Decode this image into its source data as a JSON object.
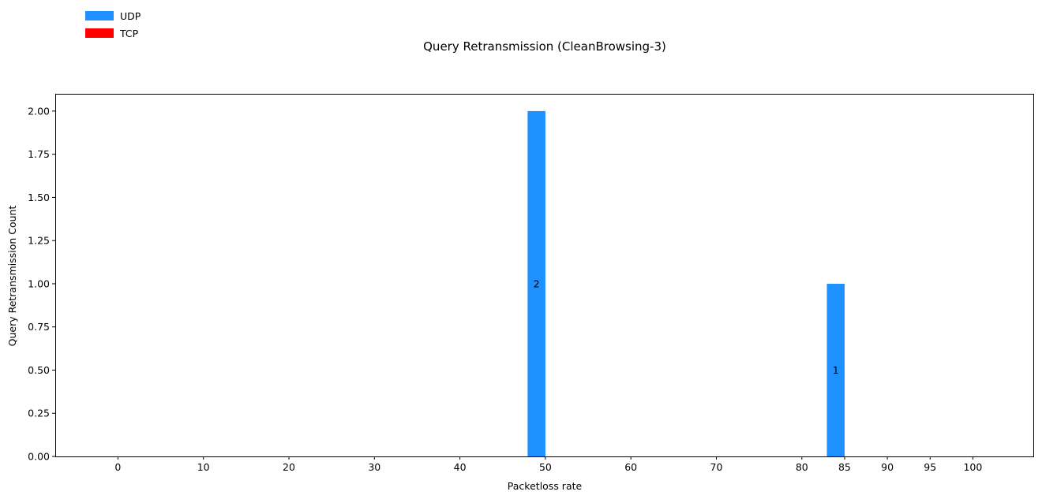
{
  "chart_data": {
    "type": "bar",
    "title": "Query Retransmission (CleanBrowsing-3)",
    "xlabel": "Packetloss rate",
    "ylabel": "Query Retransmission Count",
    "categories": [
      "0",
      "10",
      "20",
      "30",
      "40",
      "50",
      "60",
      "70",
      "80",
      "85",
      "90",
      "95",
      "100"
    ],
    "x_ticks": [
      0,
      10,
      20,
      30,
      40,
      50,
      60,
      70,
      80,
      85,
      90,
      95,
      100
    ],
    "yticks": [
      "0.00",
      "0.25",
      "0.50",
      "0.75",
      "1.00",
      "1.25",
      "1.50",
      "1.75",
      "2.00"
    ],
    "ylim": [
      0,
      2.1
    ],
    "grid": false,
    "legend_position": "top-left, outside plot",
    "series": [
      {
        "name": "UDP",
        "color": "#1e90ff",
        "values": [
          0,
          0,
          0,
          0,
          0,
          2,
          0,
          0,
          0,
          1,
          0,
          0,
          0
        ],
        "labels": [
          "",
          "",
          "",
          "",
          "",
          "2",
          "",
          "",
          "",
          "1",
          "",
          "",
          ""
        ]
      },
      {
        "name": "TCP",
        "color": "#ff0000",
        "values": [
          0,
          0,
          0,
          0,
          0,
          0,
          0,
          0,
          0,
          0,
          0,
          0,
          0
        ],
        "labels": [
          "",
          "",
          "",
          "",
          "",
          "",
          "",
          "",
          "",
          "",
          "",
          "",
          ""
        ]
      }
    ]
  }
}
